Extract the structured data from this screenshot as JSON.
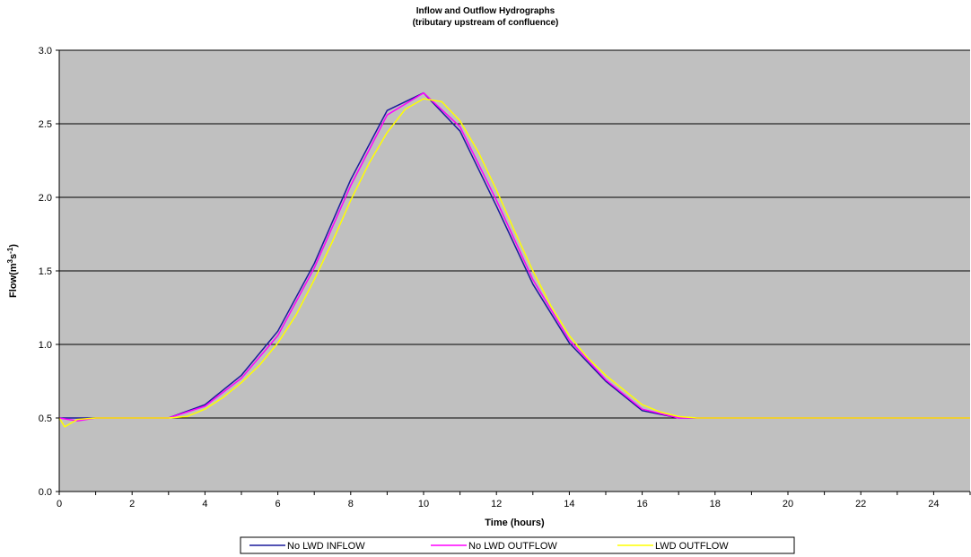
{
  "chart_data": {
    "type": "line",
    "title": "Inflow and Outflow Hydrographs",
    "subtitle": "(tributary upstream of confluence)",
    "xlabel": "Time (hours)",
    "ylabel_prefix": "Flow(m",
    "ylabel_sup1": "3",
    "ylabel_mid": "s",
    "ylabel_sup2": "-1",
    "ylabel_suffix": ")",
    "xlim": [
      0,
      25
    ],
    "ylim": [
      0,
      3.0
    ],
    "xticks": [
      0,
      2,
      4,
      6,
      8,
      10,
      12,
      14,
      16,
      18,
      20,
      22,
      24
    ],
    "yticks": [
      0.0,
      0.5,
      1.0,
      1.5,
      2.0,
      2.5,
      3.0
    ],
    "ytick_labels": [
      "0.0",
      "0.5",
      "1.0",
      "1.5",
      "2.0",
      "2.5",
      "3.0"
    ],
    "grid": "horizontal",
    "plot_background": "#c0c0c0",
    "legend_position": "bottom",
    "series": [
      {
        "name": "No LWD INFLOW",
        "color": "#1a1a9c",
        "x": [
          0,
          1,
          2,
          3,
          4,
          5,
          6,
          7,
          8,
          9,
          10,
          11,
          12,
          13,
          14,
          15,
          16,
          17,
          18,
          19,
          20,
          21,
          22,
          23,
          24,
          25
        ],
        "y": [
          0.5,
          0.5,
          0.5,
          0.5,
          0.59,
          0.79,
          1.09,
          1.55,
          2.12,
          2.59,
          2.71,
          2.45,
          1.94,
          1.41,
          1.01,
          0.75,
          0.55,
          0.5,
          0.5,
          0.5,
          0.5,
          0.5,
          0.5,
          0.5,
          0.5,
          0.5
        ]
      },
      {
        "name": "No LWD OUTFLOW",
        "color": "#ff00ff",
        "x": [
          0,
          0.5,
          1,
          2,
          3,
          4,
          5,
          6,
          7,
          8,
          9,
          10,
          11,
          12,
          13,
          14,
          15,
          16,
          17,
          18,
          19,
          20,
          21,
          22,
          23,
          24,
          25
        ],
        "y": [
          0.5,
          0.48,
          0.5,
          0.5,
          0.5,
          0.58,
          0.77,
          1.06,
          1.52,
          2.08,
          2.56,
          2.71,
          2.48,
          1.98,
          1.44,
          1.03,
          0.76,
          0.56,
          0.5,
          0.5,
          0.5,
          0.5,
          0.5,
          0.5,
          0.5,
          0.5,
          0.5
        ]
      },
      {
        "name": "LWD OUTFLOW",
        "color": "#ffff00",
        "x": [
          0,
          0.15,
          0.5,
          1,
          2,
          3,
          3.5,
          4,
          4.5,
          5,
          5.5,
          6,
          6.5,
          7,
          7.5,
          8,
          8.5,
          9,
          9.5,
          10,
          10.5,
          11,
          11.5,
          12,
          12.5,
          13,
          13.5,
          14,
          14.5,
          15,
          15.5,
          16,
          16.5,
          17,
          17.5,
          18,
          19,
          20,
          21,
          22,
          23,
          24,
          25
        ],
        "y": [
          0.5,
          0.44,
          0.49,
          0.5,
          0.5,
          0.5,
          0.51,
          0.56,
          0.64,
          0.74,
          0.86,
          1.01,
          1.2,
          1.44,
          1.7,
          1.98,
          2.23,
          2.44,
          2.6,
          2.67,
          2.65,
          2.52,
          2.31,
          2.05,
          1.77,
          1.5,
          1.26,
          1.06,
          0.91,
          0.79,
          0.69,
          0.59,
          0.54,
          0.51,
          0.5,
          0.5,
          0.5,
          0.5,
          0.5,
          0.5,
          0.5,
          0.5,
          0.5
        ]
      }
    ]
  }
}
